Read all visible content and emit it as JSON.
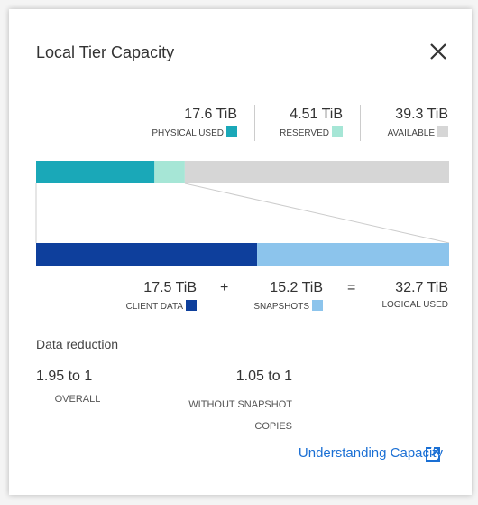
{
  "title": "Local Tier Capacity",
  "capacity": {
    "segments": [
      {
        "value": 17.6,
        "label": "17.6 TiB",
        "name": "PHYSICAL USED",
        "color": "#1aa8b8"
      },
      {
        "value": 4.51,
        "label": "4.51 TiB",
        "name": "RESERVED",
        "color": "#a6e6d6"
      },
      {
        "value": 39.3,
        "label": "39.3 TiB",
        "name": "AVAILABLE",
        "color": "#d6d6d6"
      }
    ]
  },
  "logical": {
    "segments": [
      {
        "value": 17.5,
        "label": "17.5 TiB",
        "name": "CLIENT DATA",
        "color": "#0e3f9c"
      },
      {
        "value": 15.2,
        "label": "15.2 TiB",
        "name": "SNAPSHOTS",
        "color": "#8cc4ec"
      }
    ],
    "operators": [
      "+",
      "="
    ],
    "total": {
      "value": 32.7,
      "label": "32.7 TiB",
      "name": "LOGICAL USED"
    }
  },
  "data_reduction": {
    "heading": "Data reduction",
    "items": [
      {
        "ratio": "1.95 to 1",
        "label": "OVERALL"
      },
      {
        "ratio": "1.05 to 1",
        "label": "WITHOUT SNAPSHOT COPIES"
      }
    ]
  },
  "link": "Understanding Capacity"
}
